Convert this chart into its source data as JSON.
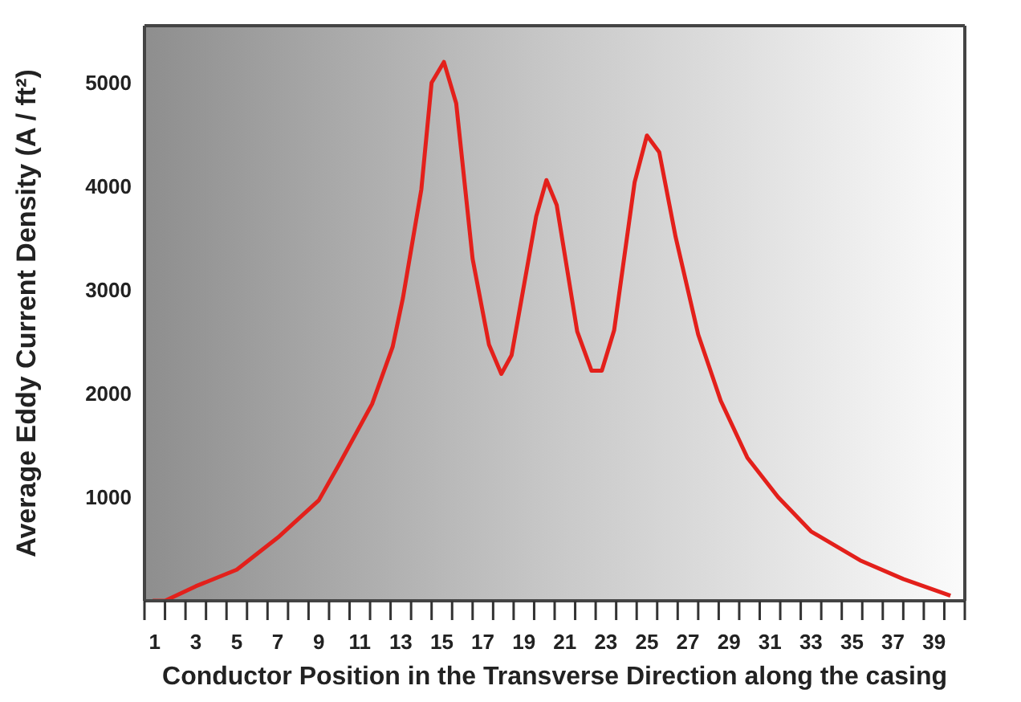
{
  "chart_data": {
    "type": "line",
    "xlabel": "Conductor Position in the Transverse Direction along the casing",
    "ylabel": "Average Eddy Current Density (A / ft²)",
    "xlim": [
      0.5,
      40.5
    ],
    "ylim": [
      0,
      5550
    ],
    "yticks": [
      1000,
      2000,
      3000,
      4000,
      5000
    ],
    "xticks": [
      {
        "value": 0.5,
        "label": null
      },
      1,
      {
        "value": 1.5,
        "label": null
      },
      {
        "value": 2.5,
        "label": null
      },
      3,
      {
        "value": 3.5,
        "label": null
      },
      {
        "value": 4.5,
        "label": null
      },
      5,
      {
        "value": 5.5,
        "label": null
      },
      {
        "value": 6.5,
        "label": null
      },
      7,
      {
        "value": 7.5,
        "label": null
      },
      {
        "value": 8.5,
        "label": null
      },
      9,
      {
        "value": 9.5,
        "label": null
      },
      {
        "value": 10.5,
        "label": null
      },
      11,
      {
        "value": 11.5,
        "label": null
      },
      {
        "value": 12.5,
        "label": null
      },
      13,
      {
        "value": 13.5,
        "label": null
      },
      {
        "value": 14.5,
        "label": null
      },
      15,
      {
        "value": 15.5,
        "label": null
      },
      {
        "value": 16.5,
        "label": null
      },
      17,
      {
        "value": 17.5,
        "label": null
      },
      {
        "value": 18.5,
        "label": null
      },
      19,
      {
        "value": 19.5,
        "label": null
      },
      {
        "value": 20.5,
        "label": null
      },
      21,
      {
        "value": 21.5,
        "label": null
      },
      {
        "value": 22.5,
        "label": null
      },
      23,
      {
        "value": 23.5,
        "label": null
      },
      {
        "value": 24.5,
        "label": null
      },
      25,
      {
        "value": 25.5,
        "label": null
      },
      {
        "value": 26.5,
        "label": null
      },
      27,
      {
        "value": 27.5,
        "label": null
      },
      {
        "value": 28.5,
        "label": null
      },
      29,
      {
        "value": 29.5,
        "label": null
      },
      {
        "value": 30.5,
        "label": null
      },
      31,
      {
        "value": 31.5,
        "label": null
      },
      {
        "value": 32.5,
        "label": null
      },
      33,
      {
        "value": 33.5,
        "label": null
      },
      {
        "value": 34.5,
        "label": null
      },
      35,
      {
        "value": 35.5,
        "label": null
      },
      {
        "value": 36.5,
        "label": null
      },
      37,
      {
        "value": 37.5,
        "label": null
      },
      {
        "value": 38.5,
        "label": null
      },
      39,
      {
        "value": 39.5,
        "label": null
      },
      {
        "value": 40.5,
        "label": null
      }
    ],
    "x": [
      0.9,
      1.5,
      3,
      5,
      7,
      9,
      10,
      11.6,
      12.6,
      13.1,
      14,
      14.5,
      15.1,
      15.7,
      16.5,
      17.3,
      17.9,
      18.4,
      19.6,
      20.1,
      20.6,
      21.6,
      22.3,
      22.8,
      23.4,
      24.4,
      25,
      25.6,
      26.4,
      27.5,
      28.6,
      29.9,
      31.4,
      33,
      35.4,
      37.5,
      39.8
    ],
    "series": [
      {
        "color": "#e3201b",
        "values": [
          0,
          0,
          140,
          300,
          610,
          970,
          1320,
          1900,
          2450,
          2920,
          3970,
          5000,
          5200,
          4800,
          3300,
          2470,
          2190,
          2370,
          3710,
          4060,
          3820,
          2600,
          2220,
          2220,
          2610,
          4040,
          4490,
          4330,
          3510,
          2570,
          1930,
          1380,
          1000,
          670,
          390,
          210,
          50
        ]
      }
    ],
    "marker": "none",
    "line_style": "solid",
    "grid": false,
    "legend": false
  }
}
